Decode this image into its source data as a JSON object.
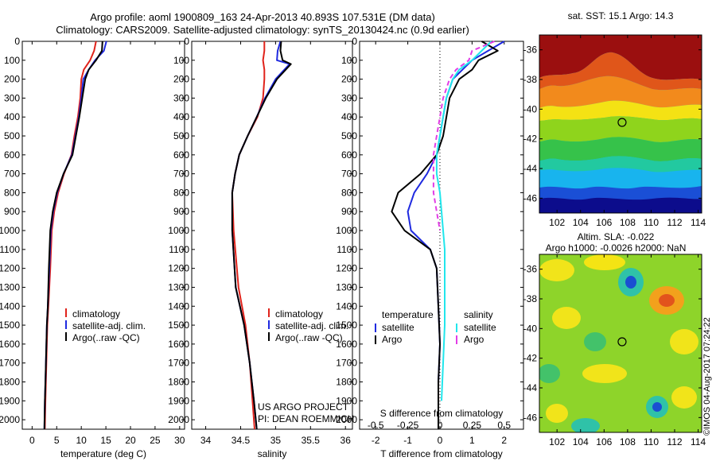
{
  "header": {
    "title_line1": "Argo profile: aoml 1900809_163 24-Apr-2013 40.893S 107.531E (DM data)",
    "title_line2": "Climatology: CARS2009. Satellite-adjusted climatology: synTS_20130424.nc (0.9d earlier)"
  },
  "colors": {
    "climatology": "#e0231b",
    "satellite": "#1f2ae0",
    "argo": "#000000",
    "sal_satellite": "#21e6ec",
    "sal_argo": "#e23ce6"
  },
  "chart_data": [
    {
      "type": "line",
      "name": "temperature-profile",
      "xlabel": "temperature (deg C)",
      "ylabel": "",
      "xlim": [
        -2,
        31
      ],
      "ylim": [
        2050,
        0
      ],
      "xticks": [
        0,
        5,
        10,
        15,
        20,
        25,
        30
      ],
      "yticks": [
        0,
        100,
        200,
        300,
        400,
        500,
        600,
        700,
        800,
        900,
        1000,
        1100,
        1200,
        1300,
        1400,
        1500,
        1600,
        1700,
        1800,
        1900,
        2000
      ],
      "legend": [
        "climatology",
        "satellite-adj. clim.",
        "Argo(..raw -QC)"
      ],
      "series": [
        {
          "name": "climatology",
          "color": "#e0231b",
          "x": [
            13.0,
            12.6,
            11.8,
            10.5,
            10.0,
            9.8,
            9.3,
            8.6,
            8.0,
            6.5,
            5.3,
            4.5,
            4.0,
            3.7,
            3.3,
            3.1,
            3.0,
            2.9,
            2.8,
            2.7,
            2.6
          ],
          "y": [
            0,
            50,
            100,
            150,
            200,
            300,
            400,
            500,
            600,
            700,
            800,
            900,
            1000,
            1200,
            1400,
            1500,
            1600,
            1700,
            1800,
            1900,
            2050
          ]
        },
        {
          "name": "satellite-adj. clim.",
          "color": "#1f2ae0",
          "x": [
            15.1,
            14.6,
            12.8,
            11.5,
            10.4,
            10.0,
            9.5,
            8.8,
            8.1,
            6.4,
            5.1,
            4.3,
            3.8,
            3.5,
            3.2,
            3.0,
            2.9,
            2.8,
            2.7,
            2.6,
            2.5
          ],
          "y": [
            0,
            50,
            100,
            150,
            200,
            300,
            400,
            500,
            600,
            700,
            800,
            900,
            1000,
            1200,
            1400,
            1500,
            1600,
            1700,
            1800,
            1900,
            2050
          ]
        },
        {
          "name": "Argo(..raw -QC)",
          "color": "#000000",
          "x": [
            14.3,
            14.2,
            13.0,
            11.5,
            10.8,
            10.2,
            9.6,
            8.9,
            8.2,
            6.4,
            5.0,
            4.2,
            3.7,
            3.4,
            3.2,
            3.0,
            2.9,
            2.8,
            2.7,
            2.6,
            2.5
          ],
          "y": [
            0,
            50,
            100,
            150,
            200,
            300,
            400,
            500,
            600,
            700,
            800,
            900,
            1000,
            1200,
            1400,
            1500,
            1600,
            1700,
            1800,
            1900,
            2050
          ]
        }
      ]
    },
    {
      "type": "line",
      "name": "salinity-profile",
      "xlabel": "salinity",
      "ylabel": "",
      "xlim": [
        33.8,
        36.1
      ],
      "ylim": [
        2050,
        0
      ],
      "xticks": [
        34,
        34.5,
        35,
        35.5,
        36
      ],
      "yticks": [
        0,
        100,
        200,
        300,
        400,
        500,
        600,
        700,
        800,
        900,
        1000,
        1100,
        1200,
        1300,
        1400,
        1500,
        1600,
        1700,
        1800,
        1900,
        2000
      ],
      "legend": [
        "climatology",
        "satellite-adj. clim.",
        "Argo(..raw -QC)"
      ],
      "annotation": [
        "US ARGO PROJECT",
        "PI: DEAN ROEMMICH"
      ],
      "series": [
        {
          "name": "climatology",
          "color": "#e0231b",
          "x": [
            34.84,
            34.84,
            34.82,
            34.84,
            34.84,
            34.82,
            34.74,
            34.6,
            34.48,
            34.42,
            34.38,
            34.4,
            34.47,
            34.57,
            34.63,
            34.67,
            34.7
          ],
          "y": [
            0,
            50,
            100,
            150,
            200,
            300,
            400,
            500,
            600,
            700,
            800,
            1000,
            1300,
            1500,
            1700,
            1900,
            2050
          ]
        },
        {
          "name": "satellite-adj. clim.",
          "color": "#1f2ae0",
          "x": [
            35.07,
            35.03,
            35.02,
            35.2,
            35.0,
            34.85,
            34.73,
            34.6,
            34.48,
            34.42,
            34.38,
            34.38,
            34.43,
            34.55,
            34.63,
            34.69,
            34.73
          ],
          "y": [
            0,
            50,
            100,
            120,
            200,
            300,
            400,
            500,
            600,
            700,
            800,
            1000,
            1300,
            1500,
            1700,
            1900,
            2050
          ]
        },
        {
          "name": "Argo(..raw -QC)",
          "color": "#000000",
          "x": [
            35.08,
            35.07,
            35.1,
            35.22,
            35.02,
            34.86,
            34.73,
            34.6,
            34.48,
            34.42,
            34.38,
            34.38,
            34.43,
            34.55,
            34.63,
            34.69,
            34.73
          ],
          "y": [
            0,
            50,
            100,
            120,
            200,
            300,
            400,
            500,
            600,
            700,
            800,
            1000,
            1300,
            1500,
            1700,
            1900,
            2050
          ]
        }
      ]
    },
    {
      "type": "line",
      "name": "difference-profile",
      "xlabel": "T difference from climatology",
      "top_xlabel": "S difference from climatology",
      "xlim": [
        -2.5,
        2.6
      ],
      "ylim": [
        2050,
        0
      ],
      "xticks": [
        -2,
        -1,
        0,
        1,
        2
      ],
      "top_ticks": [
        {
          "label": "-0.5",
          "x": -2
        },
        {
          "label": "-0.25",
          "x": -1
        },
        {
          "label": "0",
          "x": 0
        },
        {
          "label": "0.25",
          "x": 1
        },
        {
          "label": "0.5",
          "x": 2
        }
      ],
      "yticks": [
        0,
        100,
        200,
        300,
        400,
        500,
        600,
        700,
        800,
        900,
        1000,
        1100,
        1200,
        1300,
        1400,
        1500,
        1600,
        1700,
        1800,
        1900,
        2000
      ],
      "legend": {
        "temperature_heading": "temperature",
        "salinity_heading": "salinity",
        "temperature": [
          "satellite",
          "Argo"
        ],
        "salinity": [
          "satellite",
          "Argo"
        ]
      },
      "series": [
        {
          "name": "temperature satellite",
          "color": "#1f2ae0",
          "x": [
            2.0,
            1.5,
            1.0,
            0.7,
            0.4,
            0.2,
            0.1,
            0.0,
            -0.1,
            -0.4,
            -0.8,
            -1.0,
            -0.9,
            -0.3,
            -0.1,
            -0.05,
            0.0,
            -0.05,
            -0.05
          ],
          "y": [
            0,
            50,
            100,
            150,
            200,
            300,
            400,
            500,
            600,
            700,
            800,
            900,
            1000,
            1100,
            1200,
            1400,
            1600,
            1800,
            2050
          ]
        },
        {
          "name": "temperature Argo",
          "color": "#000000",
          "x": [
            1.3,
            1.8,
            1.2,
            1.0,
            0.6,
            0.3,
            0.2,
            0.1,
            -0.1,
            -0.6,
            -1.3,
            -1.5,
            -1.1,
            -0.3,
            -0.1,
            -0.05,
            0.0,
            -0.05,
            -0.05
          ],
          "y": [
            0,
            50,
            100,
            150,
            200,
            300,
            400,
            500,
            600,
            700,
            800,
            900,
            1000,
            1100,
            1200,
            1400,
            1600,
            1800,
            2050
          ]
        },
        {
          "name": "salinity satellite",
          "color": "#21e6ec",
          "x": [
            1.6,
            1.3,
            1.0,
            0.6,
            0.4,
            0.2,
            0.1,
            0.0,
            -0.1,
            -0.1,
            0.0,
            0.05,
            0.1,
            0.15,
            0.15,
            0.15,
            0.1,
            0.05
          ],
          "y": [
            0,
            50,
            100,
            150,
            200,
            300,
            400,
            500,
            600,
            700,
            800,
            900,
            1000,
            1100,
            1300,
            1500,
            1700,
            1900
          ]
        },
        {
          "name": "salinity Argo",
          "color": "#e23ce6",
          "x": [
            1.7,
            1.0,
            0.9,
            0.5,
            0.3,
            0.1,
            0.0,
            -0.1,
            -0.2,
            -0.2,
            -0.2,
            -0.1,
            0.0
          ],
          "y": [
            0,
            50,
            100,
            150,
            200,
            300,
            400,
            500,
            600,
            700,
            800,
            900,
            1000
          ]
        }
      ]
    },
    {
      "type": "heatmap",
      "name": "sst-map",
      "title": "sat. SST: 15.1 Argo: 14.3",
      "xlim": [
        100.5,
        114.3
      ],
      "ylim": [
        -47,
        -35
      ],
      "xticks": [
        102,
        104,
        106,
        108,
        110,
        112,
        114
      ],
      "yticks": [
        -36,
        -38,
        -40,
        -42,
        -44,
        -46
      ],
      "marker": {
        "x": 107.531,
        "y": -40.893
      }
    },
    {
      "type": "heatmap",
      "name": "sla-map",
      "title_line1": "Altim. SLA: -0.022",
      "title_line2": "Argo h1000: -0.0026 h2000: NaN",
      "xlim": [
        100.5,
        114.3
      ],
      "ylim": [
        -47,
        -35
      ],
      "xticks": [
        102,
        104,
        106,
        108,
        110,
        112,
        114
      ],
      "yticks": [
        -36,
        -38,
        -40,
        -42,
        -44,
        -46
      ],
      "marker": {
        "x": 107.531,
        "y": -40.893
      }
    }
  ],
  "footer": {
    "stamp": "©IMOS 04-Aug-2017 07:24:22"
  }
}
